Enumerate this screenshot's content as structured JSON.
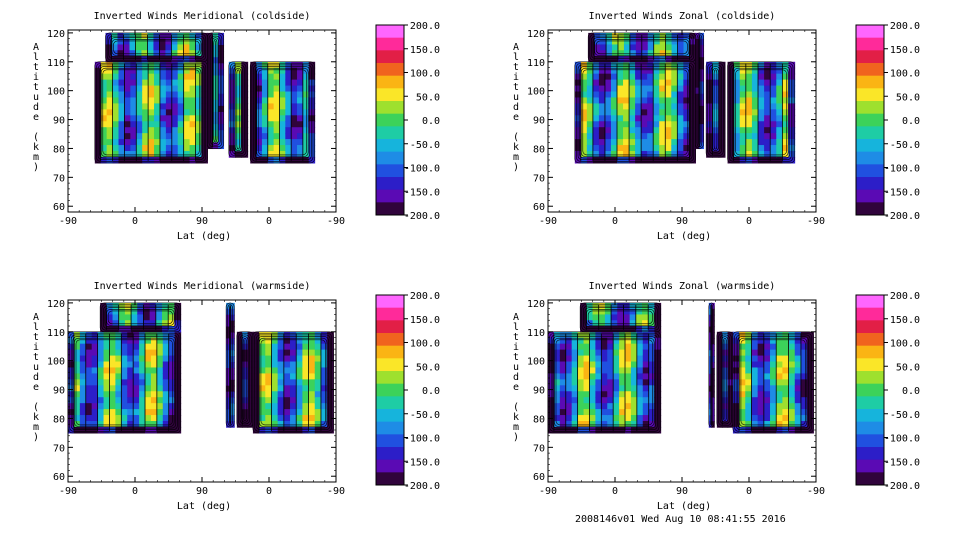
{
  "colorbar": {
    "ticks": [
      "200.0",
      "150.0",
      "100.0",
      "50.0",
      "0.0",
      "-50.0",
      "-100.0",
      "-150.0",
      "-200.0"
    ],
    "range": [
      -200,
      200
    ],
    "colors": [
      "#ff66ff",
      "#ff2a9a",
      "#e21f46",
      "#f0641e",
      "#fab414",
      "#fae628",
      "#9ee02e",
      "#3cd25a",
      "#1ecda5",
      "#16b4dc",
      "#1e8ce6",
      "#2050e0",
      "#2c1ec8",
      "#5a0ab4",
      "#30043c"
    ]
  },
  "footer": "2008146v01 Wed Aug 10 08:41:55 2016",
  "chart_data": [
    {
      "type": "heatmap",
      "title": "Inverted Winds Meridional (coldside)",
      "xlabel": "Lat (deg)",
      "ylabel": "Altitude (km)",
      "xticks": [
        "-90",
        "0",
        "90",
        "0",
        "-90"
      ],
      "yticks": [
        "60",
        "70",
        "80",
        "90",
        "100",
        "110",
        "120"
      ],
      "ylim": [
        58,
        121
      ],
      "orbit_track": "-90..90..-90 (ascending then descending)",
      "data_coverage": "altitude ~75-110 km, partial to 120 km near ascending latitudes; gap near 90-110 track",
      "value_range": [
        -200,
        200
      ]
    },
    {
      "type": "heatmap",
      "title": "Inverted Winds Zonal (coldside)",
      "xlabel": "Lat (deg)",
      "ylabel": "Altitude (km)",
      "xticks": [
        "-90",
        "0",
        "90",
        "0",
        "-90"
      ],
      "yticks": [
        "60",
        "70",
        "80",
        "90",
        "100",
        "110",
        "120"
      ],
      "ylim": [
        58,
        121
      ],
      "data_coverage": "altitude ~75-110 km, partial to 120 km",
      "value_range": [
        -200,
        200
      ]
    },
    {
      "type": "heatmap",
      "title": "Inverted Winds Meridional (warmside)",
      "xlabel": "Lat (deg)",
      "ylabel": "Altitude (km)",
      "xticks": [
        "-90",
        "0",
        "90",
        "0",
        "-90"
      ],
      "yticks": [
        "60",
        "70",
        "80",
        "90",
        "100",
        "110",
        "120"
      ],
      "ylim": [
        58,
        121
      ],
      "data_coverage": "altitude ~75-110 km with large gap near 90",
      "value_range": [
        -200,
        200
      ]
    },
    {
      "type": "heatmap",
      "title": "Inverted Winds Zonal (warmside)",
      "xlabel": "Lat (deg)",
      "ylabel": "Altitude (km)",
      "xticks": [
        "-90",
        "0",
        "90",
        "0",
        "-90"
      ],
      "yticks": [
        "60",
        "70",
        "80",
        "90",
        "100",
        "110",
        "120"
      ],
      "ylim": [
        58,
        121
      ],
      "data_coverage": "altitude ~75-110 km with large gap near 90",
      "value_range": [
        -200,
        200
      ]
    }
  ]
}
